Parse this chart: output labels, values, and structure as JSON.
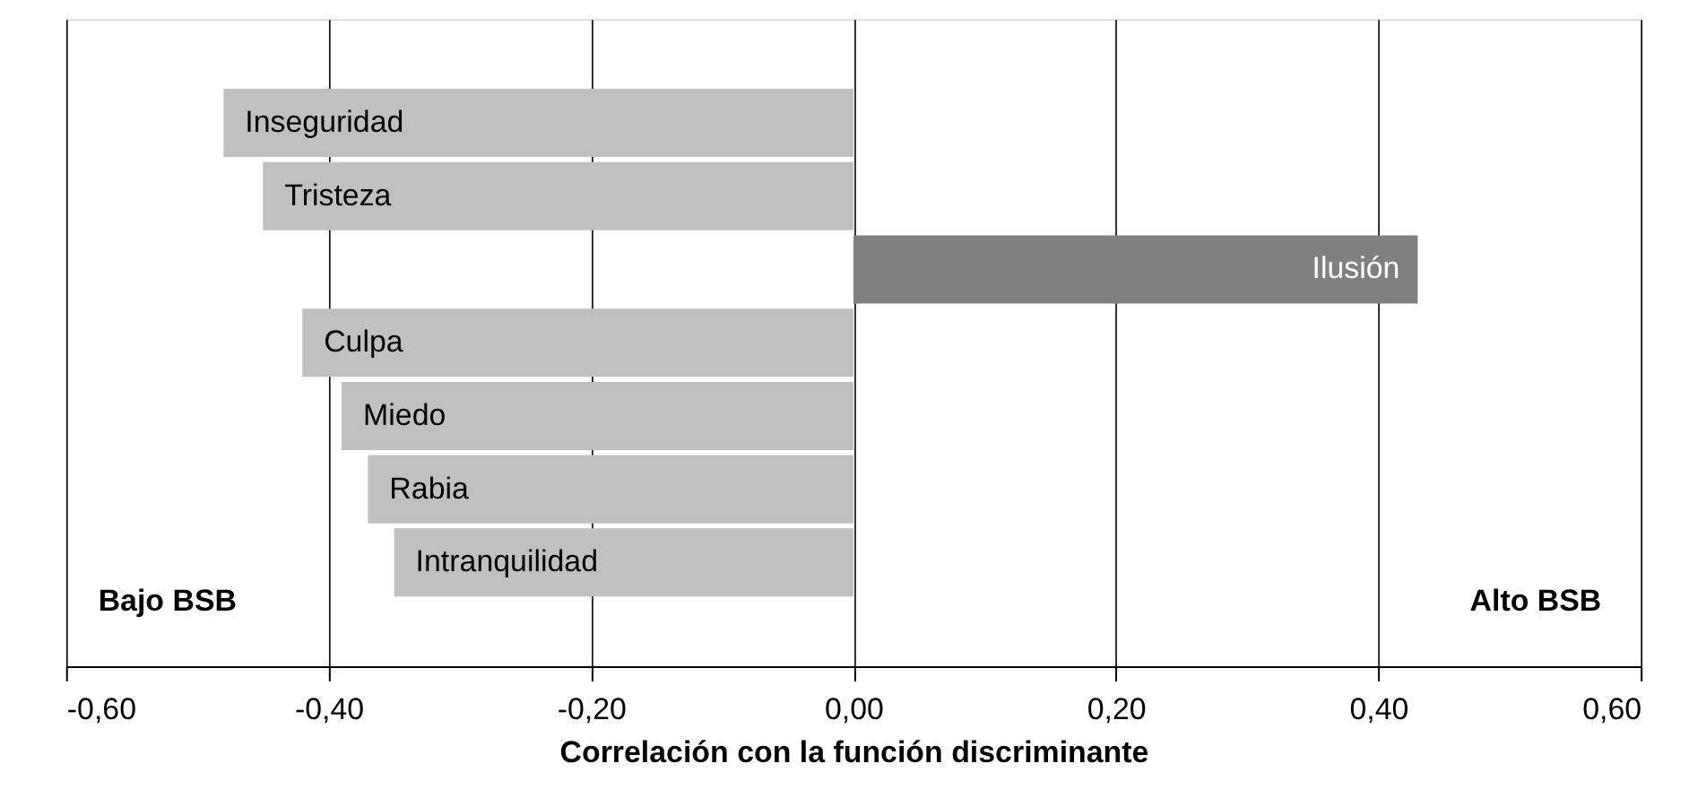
{
  "chart_data": {
    "type": "bar",
    "orientation": "horizontal",
    "xlabel": "Correlación con la función discriminante",
    "categories": [
      "Inseguridad",
      "Tristeza",
      "Ilusión",
      "Culpa",
      "Miedo",
      "Rabia",
      "Intranquilidad"
    ],
    "values": [
      -0.48,
      -0.45,
      0.43,
      -0.42,
      -0.39,
      -0.37,
      -0.35
    ],
    "colors": [
      "#c0c0c0",
      "#c0c0c0",
      "#808080",
      "#c0c0c0",
      "#c0c0c0",
      "#c0c0c0",
      "#c0c0c0"
    ],
    "xlim": [
      -0.6,
      0.6
    ],
    "xticks": [
      {
        "value": -0.6,
        "label": "-0,60"
      },
      {
        "value": -0.4,
        "label": "-0,40"
      },
      {
        "value": -0.2,
        "label": "-0,20"
      },
      {
        "value": 0,
        "label": "0,00"
      },
      {
        "value": 0.2,
        "label": "0,20"
      },
      {
        "value": 0.4,
        "label": "0,40"
      },
      {
        "value": 0.6,
        "label": "0,60"
      }
    ],
    "grid": "x",
    "tick_labels": "x",
    "annotations": [
      "Bajo BSB",
      "Alto BSB"
    ]
  }
}
